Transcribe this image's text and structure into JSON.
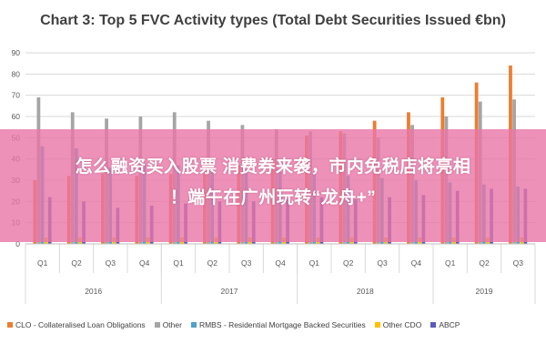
{
  "chart_data": {
    "type": "bar",
    "title": "Chart 3: Top 5 FVC Activity types (Total Debt Securities Issued €bn)",
    "xlabel": "",
    "ylabel": "",
    "ylim": [
      0,
      90
    ],
    "yticks": [
      0,
      10,
      20,
      30,
      40,
      50,
      60,
      70,
      80,
      90
    ],
    "grid": true,
    "legend_position": "bottom",
    "categories": [
      "Q1",
      "Q2",
      "Q3",
      "Q4",
      "Q1",
      "Q2",
      "Q3",
      "Q4",
      "Q1",
      "Q2",
      "Q3",
      "Q4",
      "Q1",
      "Q2",
      "Q3"
    ],
    "year_groups": [
      {
        "label": "2016",
        "count": 4
      },
      {
        "label": "2017",
        "count": 4
      },
      {
        "label": "2018",
        "count": 4
      },
      {
        "label": "2019",
        "count": 3
      }
    ],
    "series": [
      {
        "name": "CLO - Collateralised Loan Obligations",
        "color": "#ed7d31",
        "values": [
          30,
          32,
          33,
          32,
          33,
          35,
          37,
          40,
          51,
          53,
          58,
          62,
          69,
          76,
          84
        ]
      },
      {
        "name": "Other",
        "color": "#a5a5a5",
        "values": [
          69,
          62,
          59,
          60,
          62,
          58,
          56,
          54,
          53,
          52,
          50,
          56,
          60,
          67,
          68
        ]
      },
      {
        "name": "RMBS - Residential Mortgage Backed Securities",
        "color": "#4fa3c7",
        "values": [
          46,
          45,
          36,
          38,
          37,
          36,
          35,
          34,
          33,
          32,
          31,
          30,
          29,
          28,
          27
        ]
      },
      {
        "name": "Other CDO",
        "color": "#ffc000",
        "values": [
          3,
          3,
          3,
          3,
          3,
          3,
          3,
          3,
          3,
          3,
          3,
          3,
          3,
          3,
          3
        ]
      },
      {
        "name": "ABCP",
        "color": "#5a5ab8",
        "values": [
          22,
          20,
          17,
          18,
          19,
          20,
          20,
          21,
          22,
          21,
          22,
          23,
          25,
          26,
          26
        ]
      }
    ]
  },
  "overlay": {
    "line1": "怎么融资买入股票 消费券来袭，市内免税店将亮相",
    "line2": "！端午在广州玩转“龙舟+”",
    "color": "#e876a8"
  }
}
